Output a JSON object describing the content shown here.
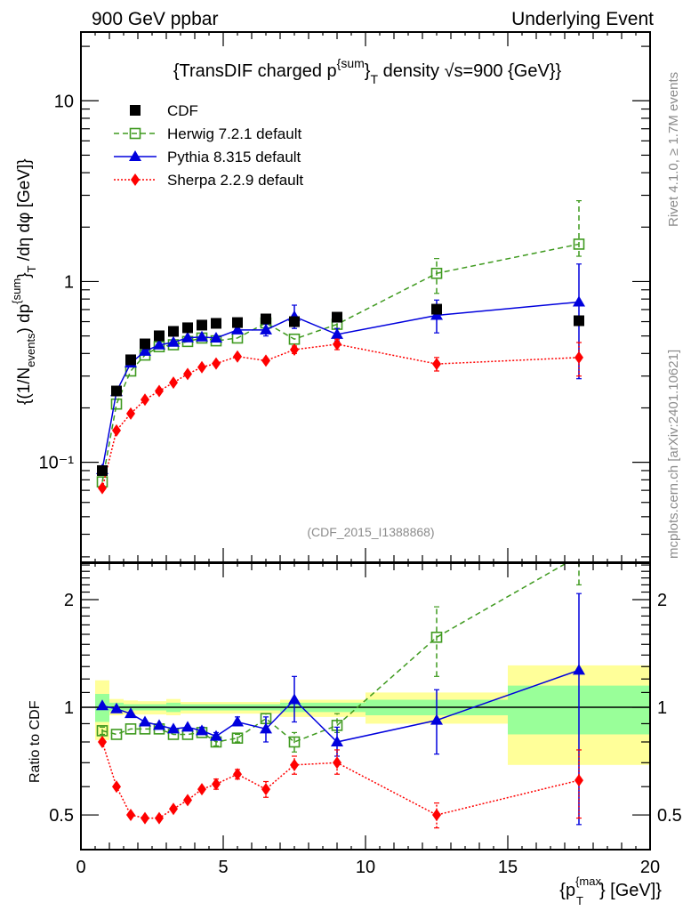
{
  "header": {
    "left_label": "900 GeV ppbar",
    "right_label": "Underlying Event"
  },
  "side_text": {
    "rivet": "Rivet 4.1.0, ≥ 1.7M events",
    "mcplots": "mcplots.cern.ch [arXiv:2401.10621]"
  },
  "colors": {
    "cdf": "#000000",
    "herwig": "#3f9a1f",
    "pythia": "#0000dd",
    "sherpa": "#ff0000",
    "band_inner": "#99ff99",
    "band_outer": "#ffff99"
  },
  "chart_data": [
    {
      "type": "scatter",
      "panel": "main",
      "title": "{TransDIF charged p^{sum}_T density √s=900 {GeV}}",
      "title_parts": {
        "pre": "{TransDIF charged p",
        "sup": "{sum",
        "mid": "}",
        "sub": "T",
        "post": " density √s=900 {GeV}}"
      },
      "ylabel": "{(1/N_events) dp^{sum}_T /dη dφ [GeV]}",
      "ylabel_parts": {
        "a": "{(1/N",
        "a_sub": "events",
        "b": ") dp",
        "b_sup": "{sum",
        "c": "}",
        "c_sub": "T",
        "d": " /dη  dφ [GeV]}"
      },
      "xlabel": "",
      "yscale": "log",
      "ylim": [
        0.028,
        24
      ],
      "xlim": [
        0,
        20
      ],
      "yticks": [
        {
          "value": 10,
          "label": "10"
        },
        {
          "value": 1,
          "label": "1"
        },
        {
          "value": 0.1,
          "label": "10⁻¹"
        }
      ],
      "watermark": "(CDF_2015_I1388868)",
      "x": [
        0.75,
        1.25,
        1.75,
        2.25,
        2.75,
        3.25,
        3.75,
        4.25,
        4.75,
        5.5,
        6.5,
        7.5,
        9,
        12.5,
        17.5
      ],
      "legend": {
        "position": "top-left",
        "entries": [
          "CDF",
          "Herwig 7.2.1 default",
          "Pythia 8.315 default",
          "Sherpa 2.2.9 default"
        ]
      },
      "series": [
        {
          "name": "CDF",
          "style": "square-filled",
          "values": [
            0.09,
            0.248,
            0.369,
            0.452,
            0.501,
            0.53,
            0.555,
            0.574,
            0.587,
            0.593,
            0.621,
            0.6,
            0.635,
            0.703,
            0.607
          ]
        },
        {
          "name": "Herwig 7.2.1 default",
          "style": "square-open-dashed",
          "values": [
            0.078,
            0.21,
            0.32,
            0.392,
            0.436,
            0.447,
            0.466,
            0.487,
            0.47,
            0.487,
            0.59,
            0.48,
            0.58,
            1.11,
            1.61
          ],
          "err_low": [
            0.076,
            0.206,
            0.315,
            0.386,
            0.43,
            0.44,
            0.459,
            0.478,
            0.458,
            0.476,
            0.57,
            0.46,
            0.55,
            0.86,
            1.38
          ],
          "err_high": [
            0.08,
            0.214,
            0.325,
            0.398,
            0.442,
            0.454,
            0.473,
            0.496,
            0.482,
            0.498,
            0.62,
            0.5,
            0.61,
            1.34,
            2.8
          ]
        },
        {
          "name": "Pythia 8.315 default",
          "style": "triangle-solid",
          "values": [
            0.091,
            0.246,
            0.354,
            0.411,
            0.446,
            0.461,
            0.488,
            0.494,
            0.487,
            0.54,
            0.54,
            0.64,
            0.51,
            0.65,
            0.77
          ],
          "err_low": [
            0.089,
            0.242,
            0.349,
            0.405,
            0.44,
            0.455,
            0.481,
            0.485,
            0.475,
            0.525,
            0.5,
            0.55,
            0.47,
            0.52,
            0.29
          ],
          "err_high": [
            0.093,
            0.25,
            0.359,
            0.417,
            0.452,
            0.467,
            0.495,
            0.503,
            0.499,
            0.555,
            0.58,
            0.74,
            0.55,
            0.79,
            1.25
          ]
        },
        {
          "name": "Sherpa 2.2.9 default",
          "style": "diamond-dotted",
          "values": [
            0.072,
            0.15,
            0.186,
            0.222,
            0.248,
            0.276,
            0.308,
            0.336,
            0.352,
            0.385,
            0.365,
            0.42,
            0.45,
            0.35,
            0.38
          ],
          "err_low": [
            0.071,
            0.148,
            0.184,
            0.219,
            0.245,
            0.272,
            0.304,
            0.331,
            0.346,
            0.377,
            0.35,
            0.4,
            0.42,
            0.32,
            0.3
          ],
          "err_high": [
            0.073,
            0.152,
            0.188,
            0.225,
            0.251,
            0.28,
            0.312,
            0.341,
            0.358,
            0.393,
            0.38,
            0.44,
            0.48,
            0.38,
            0.46
          ]
        }
      ]
    },
    {
      "type": "scatter",
      "panel": "ratio",
      "ylabel": "Ratio to CDF",
      "xlabel": "{p_T^{max}} [GeV]}",
      "xlabel_parts": {
        "pre": "{p",
        "sup": "{max",
        "sub": "T",
        "post": "} [GeV]}"
      },
      "yscale": "log",
      "ylim": [
        0.4,
        2.53
      ],
      "xlim": [
        0,
        20
      ],
      "xticks": [
        0,
        5,
        10,
        15,
        20
      ],
      "yticks": [
        {
          "value": 2,
          "label": "2"
        },
        {
          "value": 1,
          "label": "1"
        },
        {
          "value": 0.5,
          "label": "0.5"
        }
      ],
      "reference_line": 1,
      "bands": {
        "edges": [
          0.5,
          1,
          1.5,
          2,
          2.5,
          3,
          3.5,
          4,
          4.5,
          5,
          6,
          7,
          8,
          10,
          15,
          20
        ],
        "outer_low": [
          0.81,
          0.95,
          0.955,
          0.955,
          0.955,
          0.95,
          0.96,
          0.96,
          0.96,
          0.96,
          0.96,
          0.94,
          0.94,
          0.9,
          0.69
        ],
        "outer_high": [
          1.19,
          1.055,
          1.045,
          1.04,
          1.04,
          1.055,
          1.035,
          1.035,
          1.035,
          1.035,
          1.035,
          1.05,
          1.05,
          1.1,
          1.31
        ],
        "inner_low": [
          0.91,
          0.975,
          0.98,
          0.98,
          0.98,
          0.97,
          0.98,
          0.98,
          0.98,
          0.98,
          0.98,
          0.97,
          0.97,
          0.95,
          0.84
        ],
        "inner_high": [
          1.09,
          1.03,
          1.02,
          1.02,
          1.02,
          1.03,
          1.02,
          1.02,
          1.02,
          1.02,
          1.02,
          1.03,
          1.03,
          1.05,
          1.15
        ]
      },
      "x": [
        0.75,
        1.25,
        1.75,
        2.25,
        2.75,
        3.25,
        3.75,
        4.25,
        4.75,
        5.5,
        6.5,
        7.5,
        9,
        12.5,
        17.5
      ],
      "series": [
        {
          "name": "Herwig 7.2.1 default",
          "values": [
            0.86,
            0.84,
            0.87,
            0.87,
            0.87,
            0.84,
            0.84,
            0.85,
            0.8,
            0.82,
            0.93,
            0.8,
            0.89,
            1.57,
            2.65
          ],
          "err_low": [
            0.84,
            0.83,
            0.86,
            0.86,
            0.86,
            0.83,
            0.83,
            0.84,
            0.78,
            0.8,
            0.9,
            0.75,
            0.85,
            1.22,
            2.2
          ],
          "err_high": [
            0.88,
            0.85,
            0.88,
            0.88,
            0.88,
            0.85,
            0.85,
            0.86,
            0.82,
            0.84,
            0.96,
            0.85,
            0.96,
            1.91,
            4.6
          ]
        },
        {
          "name": "Pythia 8.315 default",
          "values": [
            1.01,
            0.99,
            0.96,
            0.91,
            0.89,
            0.87,
            0.88,
            0.86,
            0.83,
            0.91,
            0.87,
            1.05,
            0.8,
            0.92,
            1.27
          ],
          "err_low": [
            1.0,
            0.98,
            0.95,
            0.9,
            0.88,
            0.86,
            0.87,
            0.84,
            0.81,
            0.89,
            0.8,
            0.91,
            0.73,
            0.74,
            0.47
          ],
          "err_high": [
            1.02,
            1.0,
            0.97,
            0.92,
            0.9,
            0.88,
            0.89,
            0.88,
            0.85,
            0.94,
            0.94,
            1.22,
            0.88,
            1.12,
            2.08
          ]
        },
        {
          "name": "Sherpa 2.2.9 default",
          "values": [
            0.8,
            0.6,
            0.5,
            0.49,
            0.49,
            0.52,
            0.55,
            0.59,
            0.61,
            0.65,
            0.59,
            0.69,
            0.7,
            0.5,
            0.625
          ],
          "err_low": [
            0.79,
            0.59,
            0.49,
            0.48,
            0.48,
            0.51,
            0.54,
            0.58,
            0.59,
            0.63,
            0.56,
            0.65,
            0.65,
            0.46,
            0.49
          ],
          "err_high": [
            0.81,
            0.61,
            0.51,
            0.5,
            0.5,
            0.53,
            0.56,
            0.6,
            0.63,
            0.67,
            0.62,
            0.73,
            0.76,
            0.54,
            0.76
          ]
        }
      ]
    }
  ]
}
